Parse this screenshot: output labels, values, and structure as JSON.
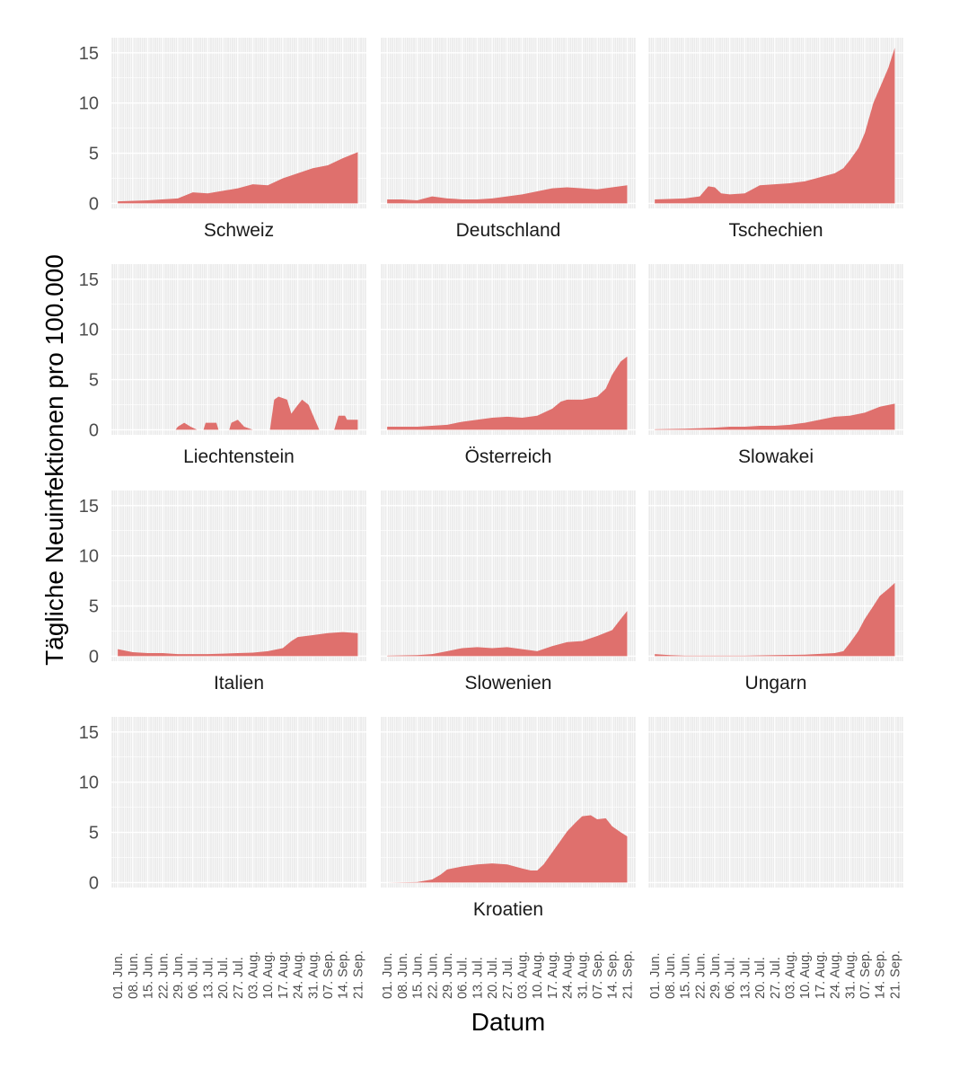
{
  "chart_data": {
    "type": "area",
    "xlabel": "Datum",
    "ylabel": "Tägliche Neuinfektionen pro 100.000",
    "ylim": [
      -0.5,
      16.5
    ],
    "y_ticks": [
      0,
      5,
      10,
      15
    ],
    "y_tick_labels": [
      "0",
      "5",
      "10",
      "15"
    ],
    "x_ticks": [
      0,
      7,
      14,
      21,
      28,
      35,
      42,
      49,
      56,
      63,
      70,
      77,
      84,
      91,
      98,
      105,
      112
    ],
    "x_tick_labels": [
      "01. Jun.",
      "08. Jun.",
      "15. Jun.",
      "22. Jun.",
      "29. Jun.",
      "06. Jul.",
      "13. Jul.",
      "20. Jul.",
      "27. Jul.",
      "03. Aug.",
      "10. Aug.",
      "17. Aug.",
      "24. Aug.",
      "31. Aug.",
      "07. Sep.",
      "14. Sep.",
      "21. Sep."
    ],
    "x_day_range": [
      -3,
      116
    ],
    "fill_color": "#df706d",
    "panel_color": "#ebebeb",
    "grid_color": "#ffffff",
    "panels": [
      {
        "name": "Schweiz",
        "start": 0,
        "end": 112,
        "points": [
          [
            0,
            0.2
          ],
          [
            14,
            0.3
          ],
          [
            28,
            0.5
          ],
          [
            35,
            1.1
          ],
          [
            42,
            1.0
          ],
          [
            56,
            1.5
          ],
          [
            63,
            1.9
          ],
          [
            70,
            1.8
          ],
          [
            77,
            2.5
          ],
          [
            84,
            3.0
          ],
          [
            91,
            3.5
          ],
          [
            98,
            3.8
          ],
          [
            105,
            4.5
          ],
          [
            112,
            5.1
          ]
        ]
      },
      {
        "name": "Deutschland",
        "start": 0,
        "end": 112,
        "points": [
          [
            0,
            0.4
          ],
          [
            7,
            0.4
          ],
          [
            14,
            0.3
          ],
          [
            21,
            0.7
          ],
          [
            28,
            0.5
          ],
          [
            35,
            0.4
          ],
          [
            42,
            0.4
          ],
          [
            49,
            0.5
          ],
          [
            56,
            0.7
          ],
          [
            63,
            0.9
          ],
          [
            70,
            1.2
          ],
          [
            77,
            1.5
          ],
          [
            84,
            1.6
          ],
          [
            91,
            1.5
          ],
          [
            98,
            1.4
          ],
          [
            105,
            1.6
          ],
          [
            112,
            1.8
          ]
        ]
      },
      {
        "name": "Tschechien",
        "start": 0,
        "end": 112,
        "points": [
          [
            0,
            0.4
          ],
          [
            14,
            0.5
          ],
          [
            21,
            0.7
          ],
          [
            25,
            1.7
          ],
          [
            28,
            1.6
          ],
          [
            31,
            1.0
          ],
          [
            35,
            0.9
          ],
          [
            42,
            1.0
          ],
          [
            49,
            1.8
          ],
          [
            56,
            1.9
          ],
          [
            63,
            2.0
          ],
          [
            70,
            2.2
          ],
          [
            77,
            2.6
          ],
          [
            84,
            3.0
          ],
          [
            88,
            3.5
          ],
          [
            91,
            4.3
          ],
          [
            95,
            5.5
          ],
          [
            98,
            7.0
          ],
          [
            102,
            10.0
          ],
          [
            105,
            11.5
          ],
          [
            109,
            13.5
          ],
          [
            112,
            15.5
          ]
        ]
      },
      {
        "name": "Liechtenstein",
        "start": 0,
        "end": 112,
        "points": [
          [
            0,
            0
          ],
          [
            27,
            0
          ],
          [
            28,
            0.3
          ],
          [
            31,
            0.7
          ],
          [
            34,
            0.3
          ],
          [
            37,
            0
          ],
          [
            40,
            0
          ],
          [
            41,
            0.7
          ],
          [
            46,
            0.7
          ],
          [
            47,
            0
          ],
          [
            52,
            0
          ],
          [
            53,
            0.7
          ],
          [
            56,
            1.0
          ],
          [
            59,
            0.3
          ],
          [
            63,
            0
          ],
          [
            71,
            0
          ],
          [
            73,
            3.0
          ],
          [
            75,
            3.3
          ],
          [
            79,
            3.0
          ],
          [
            81,
            1.6
          ],
          [
            83,
            2.2
          ],
          [
            86,
            3.0
          ],
          [
            89,
            2.5
          ],
          [
            92,
            1.0
          ],
          [
            94,
            0
          ],
          [
            101,
            0
          ],
          [
            103,
            1.4
          ],
          [
            106,
            1.4
          ],
          [
            107,
            1.0
          ],
          [
            112,
            1.0
          ]
        ]
      },
      {
        "name": "Österreich",
        "start": 0,
        "end": 112,
        "points": [
          [
            0,
            0.3
          ],
          [
            14,
            0.3
          ],
          [
            28,
            0.5
          ],
          [
            35,
            0.8
          ],
          [
            42,
            1.0
          ],
          [
            49,
            1.2
          ],
          [
            56,
            1.3
          ],
          [
            63,
            1.2
          ],
          [
            70,
            1.4
          ],
          [
            77,
            2.1
          ],
          [
            81,
            2.8
          ],
          [
            84,
            3.0
          ],
          [
            91,
            3.0
          ],
          [
            98,
            3.3
          ],
          [
            102,
            4.1
          ],
          [
            105,
            5.5
          ],
          [
            109,
            6.8
          ],
          [
            112,
            7.3
          ]
        ]
      },
      {
        "name": "Slowakei",
        "start": 0,
        "end": 112,
        "points": [
          [
            0,
            0.05
          ],
          [
            14,
            0.1
          ],
          [
            28,
            0.2
          ],
          [
            35,
            0.3
          ],
          [
            42,
            0.3
          ],
          [
            49,
            0.4
          ],
          [
            56,
            0.4
          ],
          [
            63,
            0.5
          ],
          [
            70,
            0.7
          ],
          [
            77,
            1.0
          ],
          [
            84,
            1.3
          ],
          [
            91,
            1.4
          ],
          [
            98,
            1.7
          ],
          [
            105,
            2.3
          ],
          [
            112,
            2.6
          ]
        ]
      },
      {
        "name": "Italien",
        "start": 0,
        "end": 112,
        "points": [
          [
            0,
            0.7
          ],
          [
            7,
            0.4
          ],
          [
            14,
            0.3
          ],
          [
            21,
            0.3
          ],
          [
            28,
            0.2
          ],
          [
            35,
            0.2
          ],
          [
            42,
            0.2
          ],
          [
            49,
            0.25
          ],
          [
            56,
            0.3
          ],
          [
            63,
            0.35
          ],
          [
            70,
            0.5
          ],
          [
            77,
            0.8
          ],
          [
            81,
            1.5
          ],
          [
            84,
            1.9
          ],
          [
            91,
            2.1
          ],
          [
            98,
            2.3
          ],
          [
            105,
            2.4
          ],
          [
            112,
            2.3
          ]
        ]
      },
      {
        "name": "Slowenien",
        "start": 0,
        "end": 112,
        "points": [
          [
            0,
            0.05
          ],
          [
            14,
            0.1
          ],
          [
            21,
            0.2
          ],
          [
            28,
            0.5
          ],
          [
            35,
            0.8
          ],
          [
            42,
            0.9
          ],
          [
            49,
            0.8
          ],
          [
            56,
            0.9
          ],
          [
            63,
            0.7
          ],
          [
            70,
            0.5
          ],
          [
            77,
            1.0
          ],
          [
            84,
            1.4
          ],
          [
            91,
            1.5
          ],
          [
            98,
            2.0
          ],
          [
            105,
            2.6
          ],
          [
            109,
            3.7
          ],
          [
            112,
            4.5
          ]
        ]
      },
      {
        "name": "Ungarn",
        "start": 0,
        "end": 112,
        "points": [
          [
            0,
            0.2
          ],
          [
            7,
            0.1
          ],
          [
            14,
            0.05
          ],
          [
            28,
            0.05
          ],
          [
            42,
            0.05
          ],
          [
            56,
            0.1
          ],
          [
            70,
            0.15
          ],
          [
            84,
            0.3
          ],
          [
            88,
            0.5
          ],
          [
            91,
            1.3
          ],
          [
            95,
            2.5
          ],
          [
            98,
            3.7
          ],
          [
            102,
            5.0
          ],
          [
            105,
            6.0
          ],
          [
            109,
            6.7
          ],
          [
            112,
            7.3
          ]
        ]
      },
      {
        "name": "",
        "start": 0,
        "end": 0,
        "points": []
      },
      {
        "name": "Kroatien",
        "start": 0,
        "end": 112,
        "points": [
          [
            0,
            0
          ],
          [
            14,
            0.05
          ],
          [
            21,
            0.3
          ],
          [
            25,
            0.8
          ],
          [
            28,
            1.3
          ],
          [
            35,
            1.6
          ],
          [
            42,
            1.8
          ],
          [
            49,
            1.9
          ],
          [
            56,
            1.8
          ],
          [
            63,
            1.4
          ],
          [
            67,
            1.2
          ],
          [
            70,
            1.2
          ],
          [
            73,
            1.8
          ],
          [
            77,
            3.0
          ],
          [
            81,
            4.2
          ],
          [
            84,
            5.1
          ],
          [
            88,
            6.0
          ],
          [
            91,
            6.6
          ],
          [
            95,
            6.7
          ],
          [
            98,
            6.3
          ],
          [
            102,
            6.4
          ],
          [
            105,
            5.6
          ],
          [
            109,
            5.0
          ],
          [
            112,
            4.6
          ]
        ]
      },
      {
        "name": "",
        "start": 0,
        "end": 0,
        "points": []
      }
    ]
  }
}
